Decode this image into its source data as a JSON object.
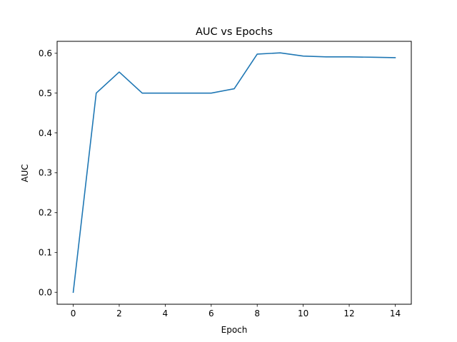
{
  "chart_data": {
    "type": "line",
    "title": "AUC vs Epochs",
    "xlabel": "Epoch",
    "ylabel": "AUC",
    "xlim": [
      -0.7,
      14.7
    ],
    "ylim": [
      -0.03,
      0.63
    ],
    "xticks": [
      0,
      2,
      4,
      6,
      8,
      10,
      12,
      14
    ],
    "xtick_labels": [
      "0",
      "2",
      "4",
      "6",
      "8",
      "10",
      "12",
      "14"
    ],
    "yticks": [
      0.0,
      0.1,
      0.2,
      0.3,
      0.4,
      0.5,
      0.6
    ],
    "ytick_labels": [
      "0.0",
      "0.1",
      "0.2",
      "0.3",
      "0.4",
      "0.5",
      "0.6"
    ],
    "grid": false,
    "legend": "none",
    "series": [
      {
        "color": "#1f77b4",
        "x": [
          0,
          1,
          2,
          3,
          4,
          5,
          6,
          7,
          8,
          9,
          10,
          11,
          12,
          13,
          14
        ],
        "y": [
          0.0,
          0.5,
          0.553,
          0.5,
          0.5,
          0.5,
          0.5,
          0.511,
          0.598,
          0.601,
          0.593,
          0.591,
          0.591,
          0.59,
          0.589
        ]
      }
    ]
  }
}
